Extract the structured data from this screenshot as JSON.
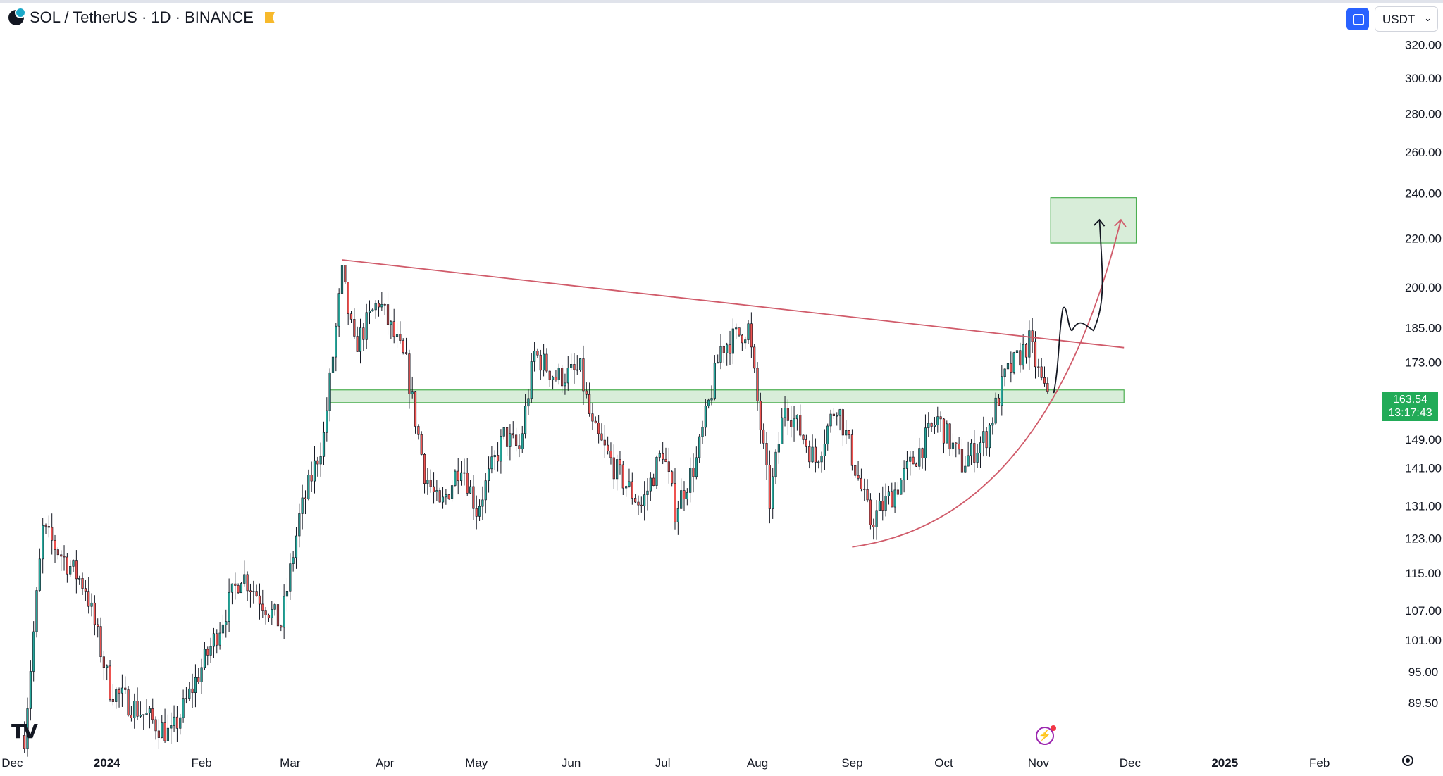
{
  "header": {
    "title": "SOL / TetherUS · 1D · BINANCE"
  },
  "toolbar": {
    "currency": "USDT"
  },
  "price_label": {
    "price": "163.54",
    "countdown": "13:17:43"
  },
  "colors": {
    "up": "#26a69a",
    "down": "#ef5350",
    "candle": "#131722",
    "trend": "#d05b6a",
    "zone_fill": "#c8e6c9",
    "zone_stroke": "#4caf50",
    "accent": "#2962ff"
  },
  "icons": {
    "symbol": "sol-logo-icon",
    "chart_type": "square-icon",
    "brand": "tradingview-logo-icon",
    "alert": "bolt-icon",
    "settings": "gear-icon"
  },
  "chart_data": {
    "type": "candlestick",
    "title": "SOL / TetherUS · 1D · BINANCE",
    "scale": "log",
    "ylim": [
      82,
      335
    ],
    "y_ticks": [
      "320.00",
      "300.00",
      "280.00",
      "260.00",
      "240.00",
      "220.00",
      "200.00",
      "185.00",
      "173.00",
      "149.00",
      "141.00",
      "131.00",
      "123.00",
      "115.00",
      "107.00",
      "101.00",
      "95.00",
      "89.50"
    ],
    "x_ticks": [
      "Dec",
      "2024",
      "Feb",
      "Mar",
      "Apr",
      "May",
      "Jun",
      "Jul",
      "Aug",
      "Sep",
      "Oct",
      "Nov",
      "Dec",
      "2025",
      "Feb"
    ],
    "x_range": [
      "2023-11-27",
      "2025-02-20"
    ],
    "last_price": 163.54,
    "price_path": [
      [
        "2023-12-05",
        84
      ],
      [
        "2023-12-11",
        125
      ],
      [
        "2023-12-25",
        112
      ],
      [
        "2024-01-02",
        92
      ],
      [
        "2024-01-22",
        84
      ],
      [
        "2024-02-05",
        101
      ],
      [
        "2024-02-14",
        115
      ],
      [
        "2024-02-27",
        104
      ],
      [
        "2024-03-04",
        128
      ],
      [
        "2024-03-12",
        150
      ],
      [
        "2024-03-18",
        205
      ],
      [
        "2024-03-22",
        178
      ],
      [
        "2024-03-30",
        195
      ],
      [
        "2024-04-08",
        172
      ],
      [
        "2024-04-14",
        140
      ],
      [
        "2024-04-19",
        130
      ],
      [
        "2024-04-26",
        143
      ],
      [
        "2024-05-01",
        130
      ],
      [
        "2024-05-10",
        150
      ],
      [
        "2024-05-15",
        146
      ],
      [
        "2024-05-20",
        176
      ],
      [
        "2024-05-27",
        168
      ],
      [
        "2024-06-04",
        170
      ],
      [
        "2024-06-08",
        152
      ],
      [
        "2024-06-16",
        140
      ],
      [
        "2024-06-24",
        131
      ],
      [
        "2024-07-01",
        146
      ],
      [
        "2024-07-05",
        130
      ],
      [
        "2024-07-12",
        143
      ],
      [
        "2024-07-20",
        178
      ],
      [
        "2024-07-29",
        185
      ],
      [
        "2024-08-05",
        132
      ],
      [
        "2024-08-10",
        160
      ],
      [
        "2024-08-20",
        143
      ],
      [
        "2024-08-27",
        160
      ],
      [
        "2024-09-07",
        127
      ],
      [
        "2024-09-15",
        135
      ],
      [
        "2024-09-21",
        143
      ],
      [
        "2024-09-29",
        155
      ],
      [
        "2024-10-07",
        142
      ],
      [
        "2024-10-15",
        150
      ],
      [
        "2024-10-21",
        168
      ],
      [
        "2024-10-29",
        180
      ],
      [
        "2024-11-03",
        163
      ],
      [
        "2024-11-04",
        163.54
      ]
    ],
    "annotations": {
      "descending_resistance": [
        [
          "2024-03-18",
          211
        ],
        [
          "2024-11-29",
          178
        ]
      ],
      "support_zone": {
        "x": [
          "2024-03-14",
          "2024-11-29"
        ],
        "y": [
          160,
          164
        ]
      },
      "target_zone": {
        "x": [
          "2024-11-05",
          "2024-12-03"
        ],
        "y": [
          218,
          238
        ]
      },
      "rising_curve": {
        "from": [
          "2024-09-01",
          121
        ],
        "to": [
          "2024-11-28",
          228
        ]
      },
      "projected_path": [
        [
          "2024-11-06",
          163
        ],
        [
          "2024-11-09",
          192
        ],
        [
          "2024-11-12",
          184
        ],
        [
          "2024-11-17",
          184
        ],
        [
          "2024-11-19",
          184
        ],
        [
          "2024-11-21",
          228
        ]
      ]
    }
  }
}
